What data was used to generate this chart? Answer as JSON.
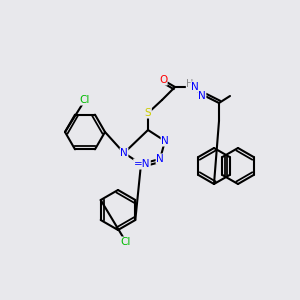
{
  "bg_color": "#e8e8ec",
  "bond_color": "#000000",
  "bond_width": 1.5,
  "atom_colors": {
    "N": "#0000ff",
    "O": "#ff0000",
    "S": "#cccc00",
    "Cl": "#00bb00",
    "H": "#888888",
    "C": "#000000"
  },
  "font_size": 7.5,
  "fig_size": [
    3.0,
    3.0
  ],
  "dpi": 100
}
